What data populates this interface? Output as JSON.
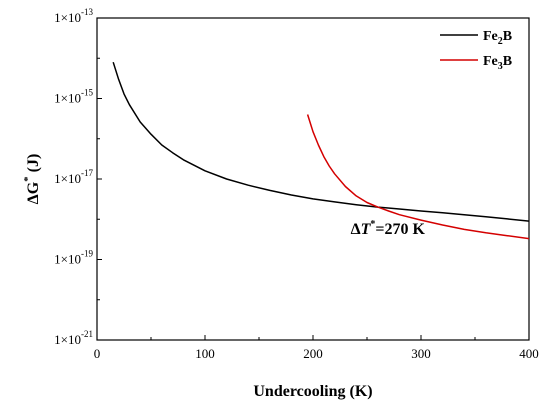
{
  "chart_data": {
    "type": "line",
    "xlabel": "Undercooling (K)",
    "ylabel": "ΔG* (J)",
    "xlim": [
      0,
      400
    ],
    "ylim_log10": [
      -21,
      -13
    ],
    "yscale": "log",
    "x_ticks": [
      0,
      100,
      200,
      300,
      400
    ],
    "y_ticks_log10": [
      -21,
      -19,
      -17,
      -15,
      -13
    ],
    "legend_position": "top-right",
    "series": [
      {
        "name": "Fe2B",
        "name_parts": [
          "Fe",
          "2",
          "B"
        ],
        "color": "#000000",
        "x": [
          15,
          20,
          25,
          30,
          40,
          50,
          60,
          70,
          80,
          100,
          120,
          140,
          160,
          180,
          200,
          220,
          240,
          260,
          280,
          300,
          320,
          340,
          360,
          380,
          400
        ],
        "y": [
          8e-15,
          3e-15,
          1.3e-15,
          7e-16,
          2.6e-16,
          1.3e-16,
          7e-17,
          4.5e-17,
          3e-17,
          1.6e-17,
          1e-17,
          7e-18,
          5.2e-18,
          4e-18,
          3.2e-18,
          2.7e-18,
          2.3e-18,
          2e-18,
          1.8e-18,
          1.6e-18,
          1.45e-18,
          1.3e-18,
          1.15e-18,
          1.02e-18,
          9e-19
        ]
      },
      {
        "name": "Fe3B",
        "name_parts": [
          "Fe",
          "3",
          "B"
        ],
        "color": "#d40000",
        "x": [
          195,
          200,
          205,
          210,
          215,
          220,
          230,
          240,
          250,
          260,
          270,
          280,
          300,
          320,
          340,
          360,
          380,
          400
        ],
        "y": [
          4e-16,
          1.5e-16,
          7e-17,
          3.6e-17,
          2.1e-17,
          1.35e-17,
          6.5e-18,
          3.8e-18,
          2.6e-18,
          2e-18,
          1.6e-18,
          1.3e-18,
          9.5e-19,
          7.2e-19,
          5.6e-19,
          4.6e-19,
          3.9e-19,
          3.3e-19
        ]
      }
    ],
    "annotation": {
      "prefix": "Δ",
      "italic": "T",
      "sup": "*",
      "suffix": "=270 K",
      "x": 270,
      "y": 1.9e-18
    }
  },
  "axes": {
    "y_tick_base": "1×10",
    "y_tick_exponents": [
      "-21",
      "-19",
      "-17",
      "-15",
      "-13"
    ],
    "x_tick_labels": [
      "0",
      "100",
      "200",
      "300",
      "400"
    ],
    "ylabel_parts": {
      "delta": "Δ",
      "letter": "G",
      "sup": "*",
      "unit": " (J)"
    }
  }
}
